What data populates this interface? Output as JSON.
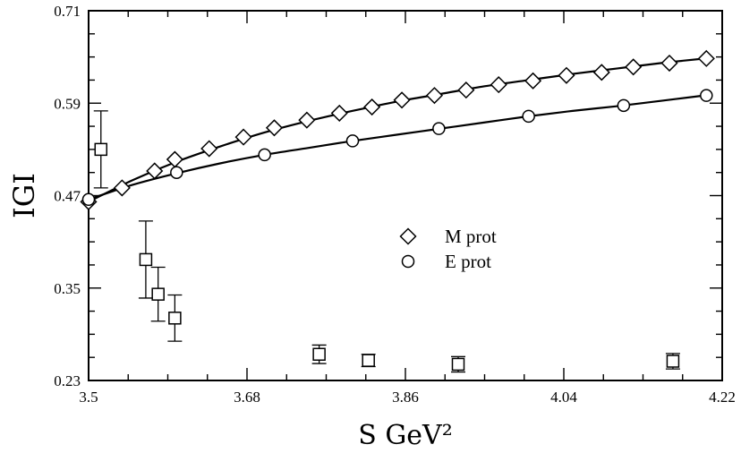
{
  "chart_data": {
    "type": "scatter",
    "xlabel": "S GeV²",
    "ylabel": "IGI",
    "xlim": [
      3.5,
      4.22
    ],
    "ylim": [
      0.23,
      0.71
    ],
    "x_ticks": [
      3.5,
      3.68,
      3.86,
      4.04,
      4.22
    ],
    "x_tick_labels": [
      "3.5",
      "3.68",
      "3.86",
      "4.04",
      "4.22"
    ],
    "y_ticks": [
      0.23,
      0.35,
      0.47,
      0.59,
      0.71
    ],
    "y_tick_labels": [
      "0.23",
      "0.35",
      "0.47",
      "0.59",
      "0.71"
    ],
    "grid": false,
    "legend_position": "center-right",
    "series": [
      {
        "name": "M prot",
        "marker": "diamond",
        "x": [
          3.5,
          3.538,
          3.575,
          3.598,
          3.637,
          3.676,
          3.711,
          3.748,
          3.785,
          3.822,
          3.856,
          3.893,
          3.929,
          3.966,
          4.005,
          4.043,
          4.083,
          4.119,
          4.16,
          4.202
        ],
        "y": [
          0.462,
          0.48,
          0.502,
          0.517,
          0.531,
          0.546,
          0.558,
          0.568,
          0.577,
          0.585,
          0.594,
          0.6,
          0.607,
          0.614,
          0.619,
          0.626,
          0.63,
          0.637,
          0.642,
          0.648
        ],
        "fit_curve": {
          "x": [
            3.5,
            3.55,
            3.6,
            3.65,
            3.7,
            3.75,
            3.8,
            3.85,
            3.9,
            3.95,
            4.0,
            4.05,
            4.1,
            4.15,
            4.2
          ],
          "y": [
            0.462,
            0.49,
            0.514,
            0.534,
            0.552,
            0.567,
            0.58,
            0.592,
            0.602,
            0.612,
            0.62,
            0.628,
            0.635,
            0.642,
            0.648
          ]
        }
      },
      {
        "name": "E prot",
        "marker": "circle",
        "x": [
          3.5,
          3.6,
          3.7,
          3.8,
          3.898,
          4.0,
          4.108,
          4.202
        ],
        "y": [
          0.465,
          0.5,
          0.523,
          0.541,
          0.557,
          0.573,
          0.587,
          0.6
        ],
        "fit_curve": {
          "x": [
            3.5,
            3.55,
            3.6,
            3.65,
            3.7,
            3.75,
            3.8,
            3.85,
            3.9,
            3.95,
            4.0,
            4.05,
            4.1,
            4.15,
            4.2
          ],
          "y": [
            0.465,
            0.484,
            0.499,
            0.512,
            0.523,
            0.532,
            0.541,
            0.549,
            0.557,
            0.565,
            0.573,
            0.58,
            0.586,
            0.593,
            0.6
          ]
        }
      },
      {
        "marker": "square",
        "x": [
          3.514,
          3.565,
          3.579,
          3.598,
          3.762,
          3.818,
          3.92,
          4.164
        ],
        "y": [
          0.53,
          0.387,
          0.342,
          0.311,
          0.264,
          0.256,
          0.251,
          0.255
        ],
        "error": [
          0.05,
          0.05,
          0.035,
          0.03,
          0.012,
          0.008,
          0.01,
          0.01
        ]
      }
    ]
  }
}
